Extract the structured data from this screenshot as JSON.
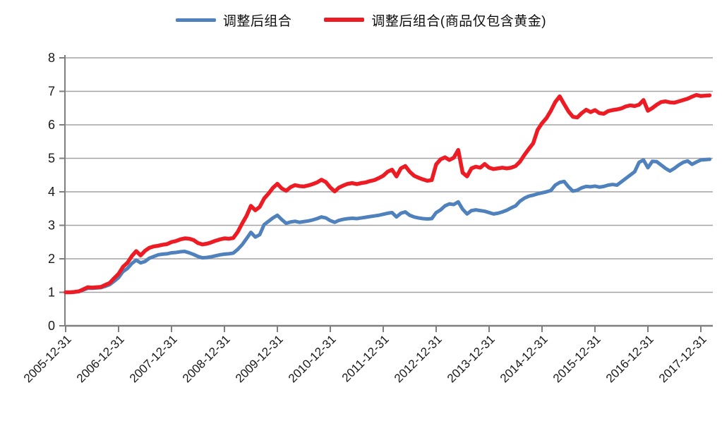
{
  "legend": {
    "items": [
      {
        "label": "调整后组合",
        "color": "#4f81bd"
      },
      {
        "label": "调整后组合(商品仅包含黄金)",
        "color": "#ed1c24"
      }
    ]
  },
  "chart_data": {
    "type": "line",
    "title": "",
    "xlabel": "",
    "ylabel": "",
    "ylim": [
      0,
      8
    ],
    "y_tick_labels": [
      "0",
      "1",
      "2",
      "3",
      "4",
      "5",
      "6",
      "7",
      "8"
    ],
    "grid": "horizontal",
    "legend_position": "top-center",
    "x_start": "2005-12",
    "x_frequency": "monthly",
    "x_tick_every_months": 12,
    "x_tick_labels": [
      "2005-12-31",
      "2006-12-31",
      "2007-12-31",
      "2008-12-31",
      "2009-12-31",
      "2010-12-31",
      "2011-12-31",
      "2012-12-31",
      "2013-12-31",
      "2014-12-31",
      "2015-12-31",
      "2016-12-31",
      "2017-12-31"
    ],
    "series": [
      {
        "name": "调整后组合",
        "color": "#4f81bd",
        "width": 5,
        "values": [
          1.0,
          1.0,
          1.01,
          1.02,
          1.07,
          1.12,
          1.12,
          1.13,
          1.14,
          1.18,
          1.23,
          1.33,
          1.44,
          1.62,
          1.71,
          1.86,
          1.96,
          1.88,
          1.92,
          2.02,
          2.07,
          2.12,
          2.14,
          2.15,
          2.18,
          2.19,
          2.21,
          2.22,
          2.18,
          2.13,
          2.07,
          2.03,
          2.04,
          2.06,
          2.09,
          2.12,
          2.14,
          2.15,
          2.17,
          2.28,
          2.42,
          2.6,
          2.79,
          2.65,
          2.72,
          3.02,
          3.12,
          3.22,
          3.3,
          3.17,
          3.06,
          3.1,
          3.12,
          3.09,
          3.11,
          3.13,
          3.16,
          3.2,
          3.25,
          3.22,
          3.14,
          3.09,
          3.15,
          3.18,
          3.2,
          3.21,
          3.2,
          3.22,
          3.24,
          3.26,
          3.28,
          3.3,
          3.33,
          3.36,
          3.38,
          3.25,
          3.36,
          3.4,
          3.3,
          3.25,
          3.22,
          3.2,
          3.19,
          3.2,
          3.38,
          3.46,
          3.58,
          3.64,
          3.62,
          3.7,
          3.48,
          3.34,
          3.44,
          3.46,
          3.44,
          3.42,
          3.38,
          3.34,
          3.36,
          3.4,
          3.45,
          3.52,
          3.58,
          3.72,
          3.81,
          3.87,
          3.9,
          3.94,
          3.97,
          4.0,
          4.04,
          4.2,
          4.28,
          4.31,
          4.15,
          4.02,
          4.05,
          4.12,
          4.16,
          4.15,
          4.17,
          4.14,
          4.16,
          4.2,
          4.22,
          4.2,
          4.3,
          4.4,
          4.5,
          4.6,
          4.88,
          4.95,
          4.72,
          4.91,
          4.9,
          4.8,
          4.7,
          4.62,
          4.7,
          4.8,
          4.88,
          4.92,
          4.82,
          4.89,
          4.95,
          4.96,
          4.97
        ]
      },
      {
        "name": "调整后组合(商品仅包含黄金)",
        "color": "#ed1c24",
        "width": 5.5,
        "values": [
          1.0,
          1.0,
          1.01,
          1.03,
          1.09,
          1.15,
          1.14,
          1.15,
          1.16,
          1.22,
          1.28,
          1.42,
          1.55,
          1.76,
          1.88,
          2.08,
          2.23,
          2.1,
          2.24,
          2.33,
          2.37,
          2.39,
          2.42,
          2.44,
          2.5,
          2.53,
          2.58,
          2.61,
          2.6,
          2.56,
          2.47,
          2.43,
          2.45,
          2.49,
          2.54,
          2.58,
          2.61,
          2.6,
          2.62,
          2.8,
          3.05,
          3.28,
          3.58,
          3.45,
          3.55,
          3.8,
          3.95,
          4.12,
          4.24,
          4.1,
          4.03,
          4.14,
          4.2,
          4.17,
          4.16,
          4.19,
          4.23,
          4.28,
          4.36,
          4.29,
          4.13,
          4.01,
          4.13,
          4.19,
          4.24,
          4.26,
          4.23,
          4.26,
          4.28,
          4.32,
          4.35,
          4.41,
          4.48,
          4.6,
          4.66,
          4.46,
          4.7,
          4.77,
          4.6,
          4.48,
          4.42,
          4.37,
          4.33,
          4.35,
          4.82,
          4.97,
          5.03,
          4.95,
          5.02,
          5.25,
          4.57,
          4.46,
          4.7,
          4.75,
          4.72,
          4.83,
          4.72,
          4.68,
          4.7,
          4.72,
          4.7,
          4.72,
          4.77,
          4.9,
          5.1,
          5.28,
          5.45,
          5.85,
          6.05,
          6.2,
          6.42,
          6.68,
          6.85,
          6.62,
          6.4,
          6.24,
          6.22,
          6.35,
          6.45,
          6.38,
          6.44,
          6.35,
          6.33,
          6.41,
          6.44,
          6.46,
          6.49,
          6.55,
          6.58,
          6.56,
          6.6,
          6.74,
          6.42,
          6.5,
          6.6,
          6.68,
          6.7,
          6.67,
          6.66,
          6.7,
          6.74,
          6.78,
          6.84,
          6.89,
          6.86,
          6.87,
          6.88
        ]
      }
    ],
    "style": {
      "grid_color": "#a3a3a3",
      "axis_color": "#7f7f7f",
      "tick_color": "#7f7f7f",
      "label_color": "#1a1a1a"
    }
  }
}
